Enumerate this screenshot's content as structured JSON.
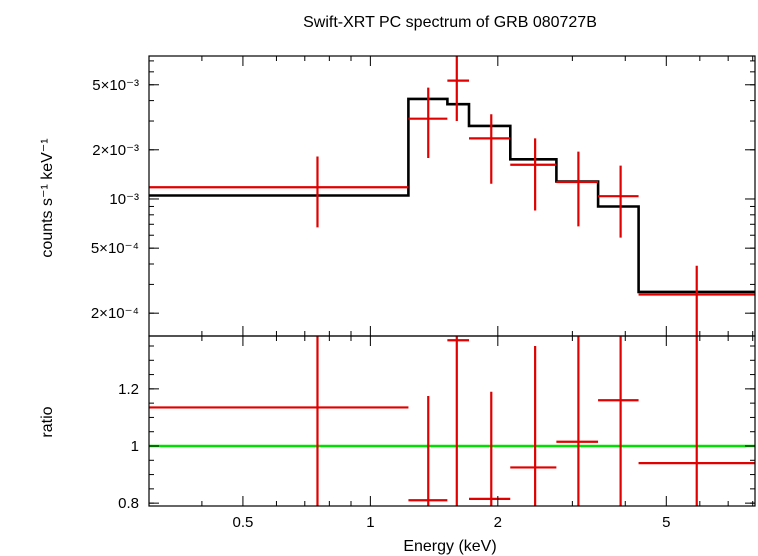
{
  "chart_data": {
    "type": "spectrum",
    "title": "Swift-XRT PC spectrum of GRB 080727B",
    "xlabel": "Energy (keV)",
    "xscale": "log",
    "xlim": [
      0.3,
      8.1
    ],
    "x_ticks": [
      {
        "value": 0.5,
        "label": "0.5"
      },
      {
        "value": 1,
        "label": "1"
      },
      {
        "value": 2,
        "label": "2"
      },
      {
        "value": 5,
        "label": "5"
      }
    ],
    "colors": {
      "data": "#e00000",
      "model": "#000000",
      "unity": "#00e000",
      "axes": "#000000"
    },
    "panels": [
      {
        "name": "spectrum",
        "ylabel": "counts s⁻¹ keV⁻¹",
        "yscale": "log",
        "ylim": [
          0.000145,
          0.0075
        ],
        "y_ticks": [
          {
            "value": 0.005,
            "label": "5×10⁻³"
          },
          {
            "value": 0.002,
            "label": "2×10⁻³"
          },
          {
            "value": 0.001,
            "label": "10⁻³"
          },
          {
            "value": 0.0005,
            "label": "5×10⁻⁴"
          },
          {
            "value": 0.0002,
            "label": "2×10⁻⁴"
          }
        ],
        "series": [
          {
            "name": "data",
            "points": [
              {
                "x": 0.75,
                "xlo": 0.3,
                "xhi": 1.23,
                "y": 0.00118,
                "ylo": 0.00067,
                "yhi": 0.00182
              },
              {
                "x": 1.37,
                "xlo": 1.23,
                "xhi": 1.52,
                "y": 0.0031,
                "ylo": 0.00178,
                "yhi": 0.0048
              },
              {
                "x": 1.6,
                "xlo": 1.52,
                "xhi": 1.71,
                "y": 0.0053,
                "ylo": 0.003,
                "yhi": 0.0075
              },
              {
                "x": 1.93,
                "xlo": 1.71,
                "xhi": 2.14,
                "y": 0.00235,
                "ylo": 0.00124,
                "yhi": 0.0033
              },
              {
                "x": 2.45,
                "xlo": 2.14,
                "xhi": 2.75,
                "y": 0.00162,
                "ylo": 0.00085,
                "yhi": 0.00235
              },
              {
                "x": 3.1,
                "xlo": 2.75,
                "xhi": 3.45,
                "y": 0.00127,
                "ylo": 0.00068,
                "yhi": 0.00195
              },
              {
                "x": 3.9,
                "xlo": 3.45,
                "xhi": 4.3,
                "y": 0.00104,
                "ylo": 0.00058,
                "yhi": 0.0016
              },
              {
                "x": 5.9,
                "xlo": 4.3,
                "xhi": 8.1,
                "y": 0.00026,
                "ylo": 0.000145,
                "yhi": 0.00039
              }
            ]
          },
          {
            "name": "model",
            "step": [
              {
                "xlo": 0.3,
                "xhi": 1.23,
                "y": 0.00105
              },
              {
                "xlo": 1.23,
                "xhi": 1.52,
                "y": 0.0041
              },
              {
                "xlo": 1.52,
                "xhi": 1.71,
                "y": 0.0038
              },
              {
                "xlo": 1.71,
                "xhi": 2.14,
                "y": 0.0028
              },
              {
                "xlo": 2.14,
                "xhi": 2.75,
                "y": 0.00175
              },
              {
                "xlo": 2.75,
                "xhi": 3.45,
                "y": 0.00128
              },
              {
                "xlo": 3.45,
                "xhi": 4.3,
                "y": 0.0009
              },
              {
                "xlo": 4.3,
                "xhi": 8.1,
                "y": 0.00027
              }
            ]
          }
        ]
      },
      {
        "name": "ratio",
        "ylabel": "ratio",
        "yscale": "linear",
        "ylim": [
          0.79,
          1.385
        ],
        "y_ticks": [
          {
            "value": 0.8,
            "label": "0.8"
          },
          {
            "value": 1,
            "label": "1"
          },
          {
            "value": 1.2,
            "label": "1.2"
          }
        ],
        "reference_line": 1.0,
        "series": [
          {
            "name": "ratio",
            "points": [
              {
                "x": 0.75,
                "xlo": 0.3,
                "xhi": 1.23,
                "y": 1.135,
                "ylo": 0.79,
                "yhi": 1.385
              },
              {
                "x": 1.37,
                "xlo": 1.23,
                "xhi": 1.52,
                "y": 0.81,
                "ylo": 0.79,
                "yhi": 1.175
              },
              {
                "x": 1.6,
                "xlo": 1.52,
                "xhi": 1.71,
                "y": 1.37,
                "ylo": 0.79,
                "yhi": 1.385
              },
              {
                "x": 1.93,
                "xlo": 1.71,
                "xhi": 2.14,
                "y": 0.815,
                "ylo": 0.79,
                "yhi": 1.19
              },
              {
                "x": 2.45,
                "xlo": 2.14,
                "xhi": 2.75,
                "y": 0.925,
                "ylo": 0.79,
                "yhi": 1.35
              },
              {
                "x": 3.1,
                "xlo": 2.75,
                "xhi": 3.45,
                "y": 1.015,
                "ylo": 0.79,
                "yhi": 1.385
              },
              {
                "x": 3.9,
                "xlo": 3.45,
                "xhi": 4.3,
                "y": 1.16,
                "ylo": 0.79,
                "yhi": 1.385
              },
              {
                "x": 5.9,
                "xlo": 4.3,
                "xhi": 8.1,
                "y": 0.94,
                "ylo": 0.79,
                "yhi": 1.385
              }
            ]
          }
        ]
      }
    ]
  }
}
